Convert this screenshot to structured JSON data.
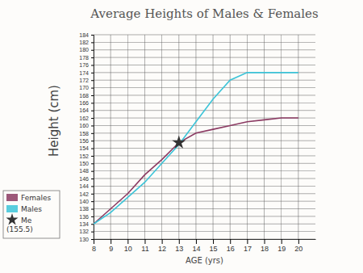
{
  "chart_data": {
    "type": "line",
    "title": "Average Heights of Males & Females",
    "x_label": "AGE (yrs)",
    "y_label": "Height (cm)",
    "x": [
      8,
      9,
      10,
      11,
      12,
      13,
      14,
      15,
      16,
      17,
      18,
      19,
      20
    ],
    "series": [
      {
        "name": "Females",
        "color": "#8b3a62",
        "values": [
          134,
          138,
          142,
          147,
          151,
          155.5,
          158,
          159,
          160,
          161,
          161.5,
          162,
          162
        ]
      },
      {
        "name": "Males",
        "color": "#3cc4d8",
        "values": [
          134,
          137,
          141,
          145,
          150,
          155,
          161,
          167,
          172,
          174,
          174,
          174,
          174
        ]
      },
      {
        "name": "Me (155.5)",
        "type": "scatter",
        "marker": "star",
        "color": "#333333",
        "values": [
          null,
          null,
          null,
          null,
          null,
          155.5,
          null,
          null,
          null,
          null,
          null,
          null,
          null
        ]
      }
    ],
    "xlim": [
      8,
      21
    ],
    "xticks": [
      8,
      9,
      10,
      11,
      12,
      13,
      14,
      15,
      16,
      17,
      18,
      19,
      20
    ],
    "ylim": [
      130,
      184
    ],
    "yticks": [
      130,
      132,
      134,
      136,
      138,
      140,
      142,
      144,
      146,
      148,
      150,
      152,
      154,
      156,
      158,
      160,
      162,
      164,
      166,
      168,
      170,
      172,
      174,
      176,
      178,
      180,
      182,
      184
    ],
    "grid": true,
    "legend": "left"
  }
}
